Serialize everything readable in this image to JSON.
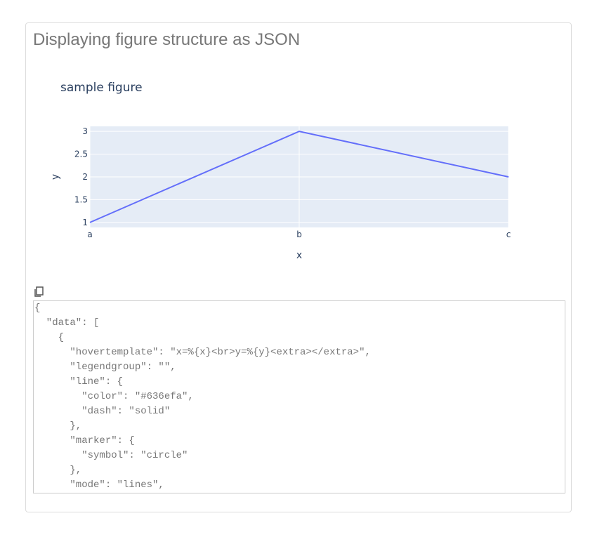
{
  "card_title": "Displaying figure structure as JSON",
  "chart_data": {
    "type": "line",
    "title": "sample figure",
    "xlabel": "x",
    "ylabel": "y",
    "categories": [
      "a",
      "b",
      "c"
    ],
    "values": [
      1,
      3,
      2
    ],
    "ylim": [
      0.89,
      3.11
    ],
    "yticks": [
      "1",
      "1.5",
      "2",
      "2.5",
      "3"
    ],
    "line_color": "#636efa",
    "plot_bg": "#e5ecf6",
    "grid": true
  },
  "copy_icon": "copy-icon",
  "json_lines": [
    "{",
    "  \"data\": [",
    "    {",
    "      \"hovertemplate\": \"x=%{x}<br>y=%{y}<extra></extra>\",",
    "      \"legendgroup\": \"\",",
    "      \"line\": {",
    "        \"color\": \"#636efa\",",
    "        \"dash\": \"solid\"",
    "      },",
    "      \"marker\": {",
    "        \"symbol\": \"circle\"",
    "      },",
    "      \"mode\": \"lines\","
  ]
}
